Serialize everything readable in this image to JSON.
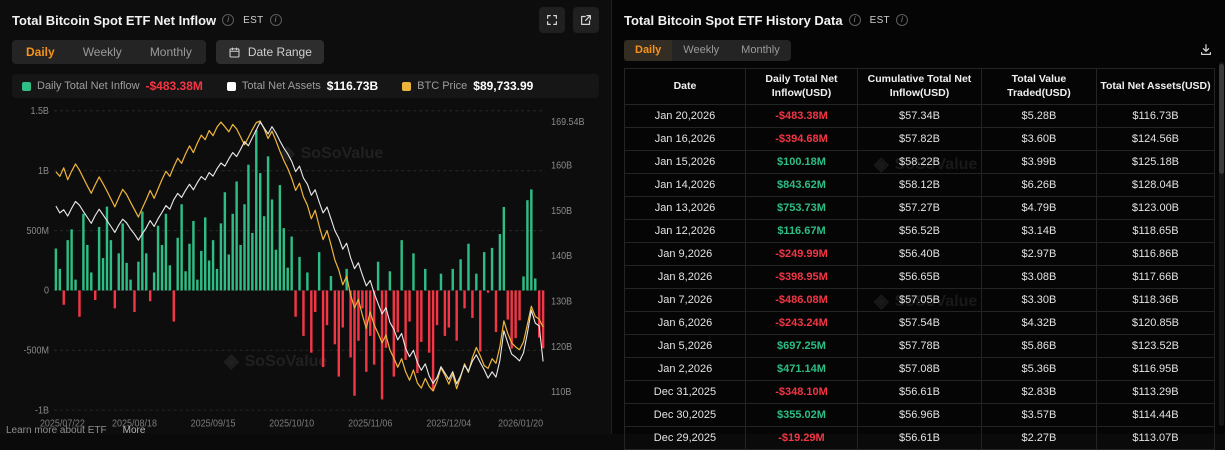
{
  "colors": {
    "accent": "#f7931a",
    "positive": "#2ebd85",
    "negative": "#f23645",
    "assets_line": "#e8e8e8",
    "btc_line": "#edb43c"
  },
  "watermark": "SoSoValue",
  "page": {
    "footer": {
      "learn_more": "Learn more about ETF",
      "more": "More"
    }
  },
  "left_panel": {
    "title": "Total Bitcoin Spot ETF Net Inflow",
    "est_label": "EST",
    "tabs": [
      "Daily",
      "Weekly",
      "Monthly"
    ],
    "active_tab": "Daily",
    "date_range_label": "Date Range",
    "legend": [
      {
        "label": "Daily Total Net Inflow",
        "value": "-$483.38M",
        "marker_color": "#2ebd85",
        "value_color": "#f23645"
      },
      {
        "label": "Total Net Assets",
        "value": "$116.73B",
        "marker_color": "#ffffff",
        "value_color": "#ffffff"
      },
      {
        "label": "BTC Price",
        "value": "$89,733.99",
        "marker_color": "#edb43c",
        "value_color": "#ffffff"
      }
    ]
  },
  "chart_data": {
    "type": "bar",
    "note": "combo chart: net-inflow bars (left axis, USD millions) + two lines (net assets USD billions right axis, BTC price USD)",
    "x_tick_labels": [
      "2025/07/22",
      "2025/08/18",
      "2025/09/15",
      "2025/10/10",
      "2025/11/06",
      "2025/12/04",
      "2026/01/20"
    ],
    "x_tick_indices": [
      0,
      20,
      40,
      60,
      80,
      100,
      124
    ],
    "left_axis": {
      "tick_labels": [
        "1.5B",
        "1B",
        "500M",
        "0",
        "-500M",
        "-1B"
      ],
      "ticks": [
        1500,
        1000,
        500,
        0,
        -500,
        -1000
      ],
      "range": [
        -1000,
        1500
      ],
      "unit": "USD millions"
    },
    "right_axis": {
      "tick_labels": [
        "169.54B",
        "160B",
        "150B",
        "140B",
        "130B",
        "120B",
        "110B"
      ],
      "ticks": [
        169.54,
        160,
        150,
        140,
        130,
        120,
        110
      ],
      "range": [
        106,
        172
      ],
      "unit": "USD billions"
    },
    "btc_axis_range": [
      75000,
      128000
    ],
    "series": [
      {
        "name": "Daily Total Net Inflow",
        "kind": "bar",
        "unit": "USD millions",
        "pos_color": "#2ebd85",
        "neg_color": "#f23645",
        "values": [
          350,
          180,
          -120,
          420,
          510,
          90,
          -220,
          640,
          380,
          150,
          -80,
          530,
          270,
          700,
          420,
          -150,
          310,
          560,
          230,
          90,
          -180,
          240,
          660,
          310,
          -90,
          150,
          540,
          380,
          640,
          210,
          -260,
          440,
          720,
          160,
          390,
          580,
          90,
          330,
          610,
          250,
          420,
          180,
          560,
          820,
          300,
          640,
          910,
          380,
          720,
          1050,
          480,
          1340,
          980,
          620,
          1120,
          760,
          340,
          880,
          520,
          190,
          450,
          -220,
          280,
          -380,
          150,
          -520,
          -180,
          320,
          -640,
          -290,
          120,
          -450,
          -720,
          -310,
          180,
          -560,
          -880,
          -420,
          -150,
          -680,
          -380,
          -620,
          240,
          -910,
          -480,
          160,
          -720,
          -350,
          420,
          -580,
          -260,
          310,
          -690,
          -430,
          180,
          -520,
          -840,
          -290,
          140,
          -380,
          -310,
          180,
          -420,
          260,
          -150,
          390,
          -230,
          140,
          -510,
          320,
          -19.29,
          355.02,
          -348.1,
          471.14,
          697.25,
          -243.24,
          -486.08,
          -398.95,
          -249.99,
          116.67,
          753.73,
          843.62,
          100.18,
          -394.68,
          -483.38
        ]
      },
      {
        "name": "Total Net Assets",
        "kind": "line",
        "unit": "USD billions",
        "color": "#e8e8e8",
        "values": [
          151,
          149.5,
          150.2,
          148.8,
          150.5,
          152,
          151.2,
          149.8,
          148.5,
          147.2,
          148.9,
          150.3,
          149.1,
          147.8,
          146.5,
          145.2,
          146.8,
          148.1,
          147.3,
          145.9,
          144.8,
          143.5,
          144.9,
          146.2,
          147.8,
          146.5,
          148.2,
          149.6,
          151.1,
          150.3,
          152.4,
          153.8,
          152.9,
          154.5,
          155.8,
          154.6,
          156.2,
          157.5,
          156.8,
          158.4,
          157.6,
          159.2,
          160.5,
          159.8,
          161.4,
          162.8,
          161.9,
          163.5,
          165.2,
          164.3,
          166.1,
          167.8,
          169.54,
          168.2,
          166.9,
          168.5,
          167.1,
          165.4,
          163.8,
          162.5,
          160.9,
          158.6,
          159.8,
          157.2,
          155.8,
          153.4,
          154.6,
          151.9,
          149.5,
          150.8,
          148.2,
          145.6,
          143.9,
          141.5,
          142.8,
          139.6,
          137.2,
          138.5,
          135.8,
          133.4,
          134.6,
          131.8,
          129.5,
          127.2,
          128.6,
          125.4,
          123.8,
          121.5,
          122.9,
          119.6,
          117.8,
          119.2,
          116.5,
          114.8,
          116.2,
          113.5,
          111.9,
          113.2,
          115.6,
          114.2,
          112.8,
          114.5,
          111.8,
          113.6,
          115.9,
          114.6,
          116.8,
          118.2,
          116.5,
          114.9,
          113.07,
          114.44,
          113.29,
          116.95,
          123.52,
          120.85,
          118.36,
          117.66,
          116.86,
          118.65,
          123.0,
          128.04,
          125.18,
          124.56,
          116.73
        ]
      },
      {
        "name": "BTC Price",
        "kind": "line",
        "unit": "USD",
        "color": "#edb43c",
        "values": [
          117200,
          116400,
          117900,
          115800,
          117300,
          118600,
          117500,
          116100,
          114700,
          113400,
          114900,
          116300,
          115100,
          113800,
          112400,
          111000,
          112600,
          114100,
          113200,
          111800,
          110500,
          109200,
          110800,
          112300,
          113900,
          112500,
          114200,
          115800,
          117300,
          116400,
          118100,
          119600,
          118700,
          120400,
          121800,
          120600,
          122300,
          123700,
          122900,
          124500,
          123600,
          125100,
          126000,
          125200,
          124300,
          125600,
          124800,
          123400,
          122000,
          123300,
          124700,
          125900,
          126200,
          124800,
          123100,
          124400,
          122700,
          120900,
          119200,
          117800,
          116100,
          113900,
          115200,
          112800,
          111300,
          108900,
          110400,
          107600,
          105200,
          106800,
          104300,
          101600,
          99800,
          97200,
          98700,
          95400,
          93100,
          94600,
          91800,
          89500,
          92400,
          90100,
          88600,
          86900,
          88300,
          85700,
          84200,
          82600,
          84100,
          81800,
          80300,
          82100,
          79800,
          78900,
          80600,
          79200,
          78400,
          80100,
          82500,
          81200,
          79600,
          81400,
          78800,
          80900,
          83200,
          81700,
          84300,
          86100,
          84600,
          82900,
          82400,
          84100,
          83300,
          86200,
          90800,
          88600,
          86900,
          86200,
          85700,
          87100,
          90200,
          93400,
          91600,
          91100,
          89733.99
        ]
      }
    ]
  },
  "right_panel": {
    "title": "Total Bitcoin Spot ETF History Data",
    "est_label": "EST",
    "tabs": [
      "Daily",
      "Weekly",
      "Monthly"
    ],
    "active_tab": "Daily",
    "table": {
      "columns": [
        "Date",
        "Daily Total Net Inflow(USD)",
        "Cumulative Total Net Inflow(USD)",
        "Total Value Traded(USD)",
        "Total Net Assets(USD)"
      ],
      "rows": [
        {
          "date": "Jan 20,2026",
          "inflow": "-$483.38M",
          "cumulative": "$57.34B",
          "traded": "$5.28B",
          "assets": "$116.73B"
        },
        {
          "date": "Jan 16,2026",
          "inflow": "-$394.68M",
          "cumulative": "$57.82B",
          "traded": "$3.60B",
          "assets": "$124.56B"
        },
        {
          "date": "Jan 15,2026",
          "inflow": "$100.18M",
          "cumulative": "$58.22B",
          "traded": "$3.99B",
          "assets": "$125.18B"
        },
        {
          "date": "Jan 14,2026",
          "inflow": "$843.62M",
          "cumulative": "$58.12B",
          "traded": "$6.26B",
          "assets": "$128.04B"
        },
        {
          "date": "Jan 13,2026",
          "inflow": "$753.73M",
          "cumulative": "$57.27B",
          "traded": "$4.79B",
          "assets": "$123.00B"
        },
        {
          "date": "Jan 12,2026",
          "inflow": "$116.67M",
          "cumulative": "$56.52B",
          "traded": "$3.14B",
          "assets": "$118.65B"
        },
        {
          "date": "Jan 9,2026",
          "inflow": "-$249.99M",
          "cumulative": "$56.40B",
          "traded": "$2.97B",
          "assets": "$116.86B"
        },
        {
          "date": "Jan 8,2026",
          "inflow": "-$398.95M",
          "cumulative": "$56.65B",
          "traded": "$3.08B",
          "assets": "$117.66B"
        },
        {
          "date": "Jan 7,2026",
          "inflow": "-$486.08M",
          "cumulative": "$57.05B",
          "traded": "$3.30B",
          "assets": "$118.36B"
        },
        {
          "date": "Jan 6,2026",
          "inflow": "-$243.24M",
          "cumulative": "$57.54B",
          "traded": "$4.32B",
          "assets": "$120.85B"
        },
        {
          "date": "Jan 5,2026",
          "inflow": "$697.25M",
          "cumulative": "$57.78B",
          "traded": "$5.86B",
          "assets": "$123.52B"
        },
        {
          "date": "Jan 2,2026",
          "inflow": "$471.14M",
          "cumulative": "$57.08B",
          "traded": "$5.36B",
          "assets": "$116.95B"
        },
        {
          "date": "Dec 31,2025",
          "inflow": "-$348.10M",
          "cumulative": "$56.61B",
          "traded": "$2.83B",
          "assets": "$113.29B"
        },
        {
          "date": "Dec 30,2025",
          "inflow": "$355.02M",
          "cumulative": "$56.96B",
          "traded": "$3.57B",
          "assets": "$114.44B"
        },
        {
          "date": "Dec 29,2025",
          "inflow": "-$19.29M",
          "cumulative": "$56.61B",
          "traded": "$2.27B",
          "assets": "$113.07B"
        }
      ]
    }
  }
}
